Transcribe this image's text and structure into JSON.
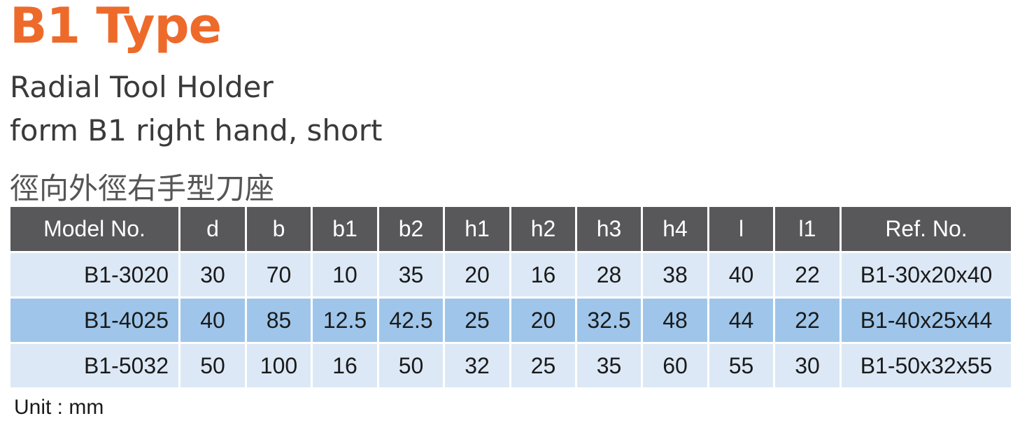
{
  "title": "B1 Type",
  "subtitle1": "Radial Tool Holder",
  "subtitle2": "form B1 right hand, short",
  "subtitle3": "徑向外徑右手型刀座",
  "table": {
    "headers": [
      "Model No.",
      "d",
      "b",
      "b1",
      "b2",
      "h1",
      "h2",
      "h3",
      "h4",
      "l",
      "l1",
      "Ref. No."
    ],
    "rows": [
      [
        "B1-3020",
        "30",
        "70",
        "10",
        "35",
        "20",
        "16",
        "28",
        "38",
        "40",
        "22",
        "B1-30x20x40"
      ],
      [
        "B1-4025",
        "40",
        "85",
        "12.5",
        "42.5",
        "25",
        "20",
        "32.5",
        "48",
        "44",
        "22",
        "B1-40x25x44"
      ],
      [
        "B1-5032",
        "50",
        "100",
        "16",
        "50",
        "32",
        "25",
        "35",
        "60",
        "55",
        "30",
        "B1-50x32x55"
      ]
    ]
  },
  "unit": "Unit : mm",
  "colors": {
    "title": "#ee6a2a",
    "header": "#58585a",
    "row_light": "#dce8f5",
    "row_highlight": "#9fc6ea"
  }
}
